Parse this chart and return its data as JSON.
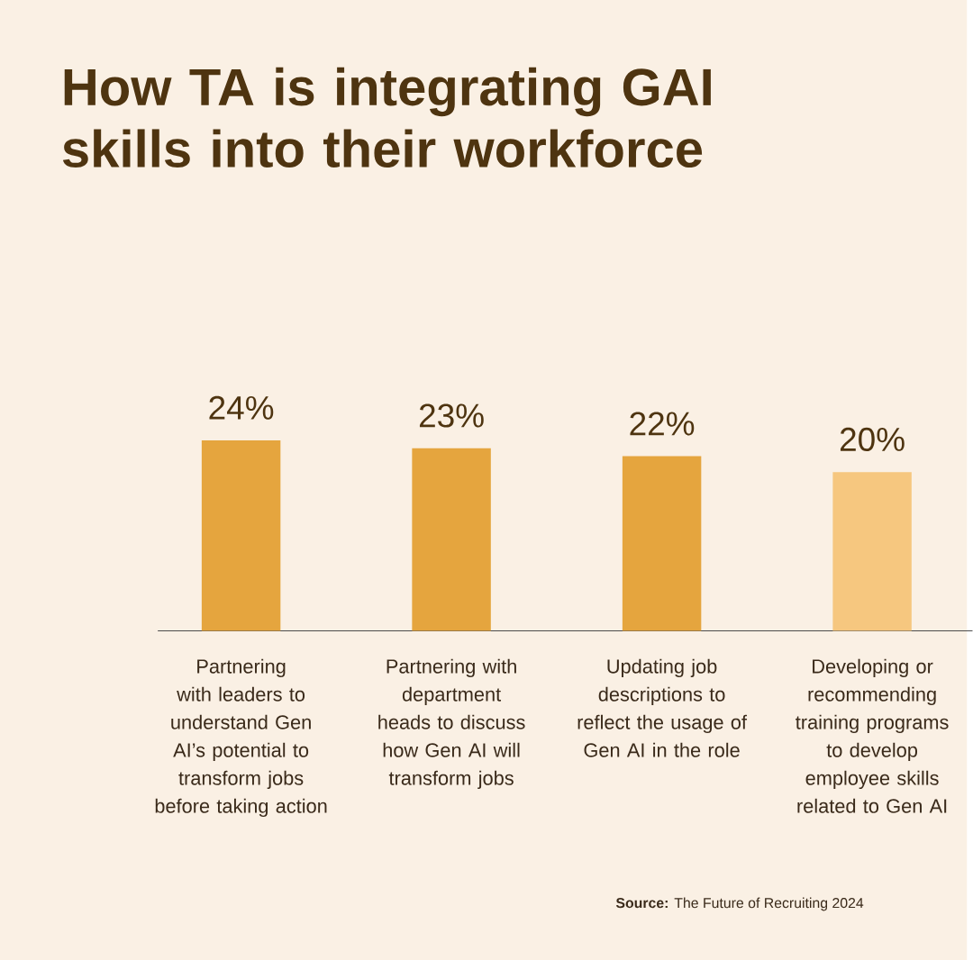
{
  "chart_data": {
    "type": "bar",
    "title": "How TA is integrating GAI skills into their workforce",
    "categories": [
      "Partnering with leaders to understand Gen AI’s potential to transform jobs before taking action",
      "Partnering with department heads to discuss how Gen AI will transform jobs",
      "Updating job descriptions to reflect the usage of Gen AI in the role",
      "Developing or recommending training programs to develop employee skills related to Gen AI"
    ],
    "values": [
      24,
      23,
      22,
      20
    ],
    "value_labels": [
      "24%",
      "23%",
      "22%",
      "20%"
    ],
    "colors": [
      "#e5a53e",
      "#e5a53e",
      "#e5a53e",
      "#f6c77f"
    ],
    "annotations": [
      "**Source:** The Future of Recruiting 2024"
    ]
  }
}
